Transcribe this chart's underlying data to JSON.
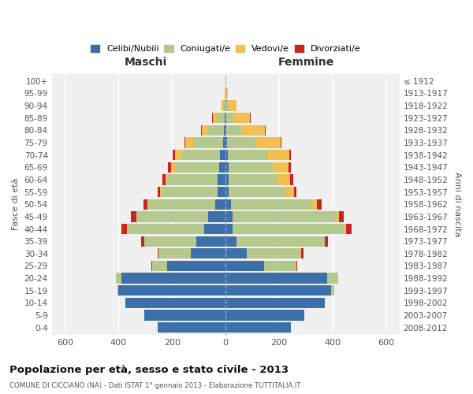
{
  "age_groups": [
    "0-4",
    "5-9",
    "10-14",
    "15-19",
    "20-24",
    "25-29",
    "30-34",
    "35-39",
    "40-44",
    "45-49",
    "50-54",
    "55-59",
    "60-64",
    "65-69",
    "70-74",
    "75-79",
    "80-84",
    "85-89",
    "90-94",
    "95-99",
    "100+"
  ],
  "birth_years": [
    "2008-2012",
    "2003-2007",
    "1998-2002",
    "1993-1997",
    "1988-1992",
    "1983-1987",
    "1978-1982",
    "1973-1977",
    "1968-1972",
    "1963-1967",
    "1958-1962",
    "1953-1957",
    "1948-1952",
    "1943-1947",
    "1938-1942",
    "1933-1937",
    "1928-1932",
    "1923-1927",
    "1918-1922",
    "1913-1917",
    "≤ 1912"
  ],
  "males": {
    "celibe": [
      255,
      305,
      375,
      400,
      390,
      220,
      130,
      110,
      80,
      65,
      40,
      30,
      30,
      25,
      20,
      10,
      5,
      3,
      2,
      0,
      0
    ],
    "coniugato": [
      0,
      0,
      0,
      5,
      20,
      55,
      120,
      195,
      290,
      270,
      250,
      210,
      185,
      165,
      145,
      110,
      60,
      30,
      8,
      2,
      0
    ],
    "vedovo": [
      0,
      0,
      0,
      0,
      0,
      0,
      0,
      0,
      0,
      0,
      2,
      5,
      10,
      15,
      25,
      30,
      25,
      15,
      5,
      2,
      0
    ],
    "divorziato": [
      0,
      0,
      0,
      0,
      0,
      2,
      5,
      12,
      20,
      18,
      15,
      8,
      12,
      10,
      8,
      5,
      3,
      2,
      0,
      0,
      0
    ]
  },
  "females": {
    "nubile": [
      245,
      295,
      370,
      395,
      380,
      145,
      80,
      40,
      25,
      25,
      20,
      10,
      10,
      10,
      8,
      5,
      3,
      2,
      2,
      0,
      0
    ],
    "coniugata": [
      0,
      0,
      0,
      10,
      40,
      120,
      200,
      330,
      420,
      390,
      305,
      215,
      185,
      165,
      150,
      105,
      55,
      30,
      8,
      2,
      0
    ],
    "vedova": [
      0,
      0,
      0,
      0,
      0,
      0,
      2,
      2,
      5,
      8,
      15,
      30,
      45,
      60,
      80,
      95,
      90,
      60,
      30,
      5,
      2
    ],
    "divorziata": [
      0,
      0,
      0,
      0,
      0,
      3,
      8,
      12,
      20,
      20,
      18,
      10,
      12,
      8,
      5,
      3,
      2,
      2,
      0,
      0,
      0
    ]
  },
  "colors": {
    "celibe": "#3d6fa8",
    "coniugato": "#b5c98e",
    "vedovo": "#f0c050",
    "divorziato": "#cc2222"
  },
  "xlim": 650,
  "title": "Popolazione per età, sesso e stato civile - 2013",
  "subtitle": "COMUNE DI CICCIANO (NA) - Dati ISTAT 1° gennaio 2013 - Elaborazione TUTTITALIA.IT",
  "ylabel_left": "Fasce di età",
  "ylabel_right": "Anni di nascita",
  "xlabel_maschi": "Maschi",
  "xlabel_femmine": "Femmine",
  "legend_labels": [
    "Celibi/Nubili",
    "Coniugati/e",
    "Vedovi/e",
    "Divorziati/e"
  ],
  "bg_color": "#f0f0f0",
  "bar_height": 0.85
}
